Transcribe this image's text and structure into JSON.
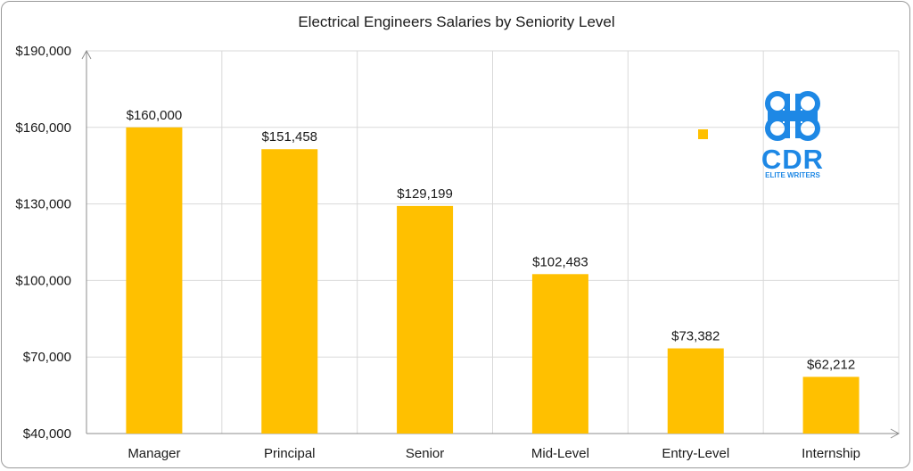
{
  "chart_data": {
    "type": "bar",
    "title": "Electrical Engineers Salaries by Seniority Level",
    "xlabel": "",
    "ylabel": "",
    "categories": [
      "Manager",
      "Principal",
      "Senior",
      "Mid-Level",
      "Entry-Level",
      "Internship"
    ],
    "values": [
      160000,
      151458,
      129199,
      102483,
      73382,
      62212
    ],
    "value_labels": [
      "$160,000",
      "$151,458",
      "$129,199",
      "$102,483",
      "$73,382",
      "$62,212"
    ],
    "ylim": [
      40000,
      190000
    ],
    "yticks": [
      40000,
      70000,
      100000,
      130000,
      160000,
      190000
    ],
    "ytick_labels": [
      "$40,000",
      "$70,000",
      "$100,000",
      "$130,000",
      "$160,000",
      "$190,000"
    ],
    "grid": true,
    "legend": "none",
    "bar_color": "#FFC000"
  },
  "logo": {
    "text": "CDR",
    "subtext": "ELITE WRITERS",
    "color": "#1E88E5",
    "icon": "command-key-icon"
  },
  "colors": {
    "grid": "#d9d9d9",
    "axis": "#8c8c8c",
    "marker": "#FFC000"
  }
}
